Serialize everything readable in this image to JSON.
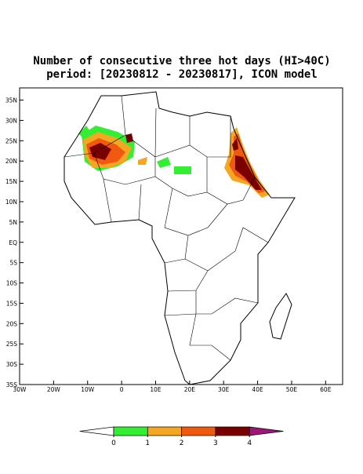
{
  "title": [
    "Number of consecutive three hot days (HI>40C)",
    "period: [20230812 - 20230817], ICON model"
  ],
  "map": {
    "xlim": [
      -30,
      65
    ],
    "ylim": [
      -35,
      38
    ],
    "xticks": [
      {
        "value": -30,
        "label": "30W"
      },
      {
        "value": -20,
        "label": "20W"
      },
      {
        "value": -10,
        "label": "10W"
      },
      0,
      {
        "value": 10,
        "label": "10E"
      },
      {
        "value": 20,
        "label": "20E"
      },
      {
        "value": 30,
        "label": "30E"
      },
      {
        "value": 40,
        "label": "40E"
      },
      {
        "value": 50,
        "label": "50E"
      },
      {
        "value": 60,
        "label": "60E"
      }
    ],
    "yticks": [
      {
        "value": 35,
        "label": "35N"
      },
      {
        "value": 30,
        "label": "30N"
      },
      {
        "value": 25,
        "label": "25N"
      },
      {
        "value": 20,
        "label": "20N"
      },
      {
        "value": 15,
        "label": "15N"
      },
      {
        "value": 10,
        "label": "10N"
      },
      {
        "value": 5,
        "label": "5N"
      },
      {
        "value": 0,
        "label": "EQ"
      },
      {
        "value": -5,
        "label": "5S"
      },
      {
        "value": -10,
        "label": "10S"
      },
      {
        "value": -15,
        "label": "15S"
      },
      {
        "value": -20,
        "label": "20S"
      },
      {
        "value": -25,
        "label": "25S"
      },
      {
        "value": -30,
        "label": "30S"
      },
      {
        "value": -35,
        "label": "35S"
      }
    ]
  },
  "colorbar": {
    "levels": [
      0,
      1,
      2,
      3,
      4
    ],
    "colors": [
      "#ffffff",
      "#33ee33",
      "#f5a623",
      "#f05a10",
      "#7a0000",
      "#a0157a"
    ]
  }
}
